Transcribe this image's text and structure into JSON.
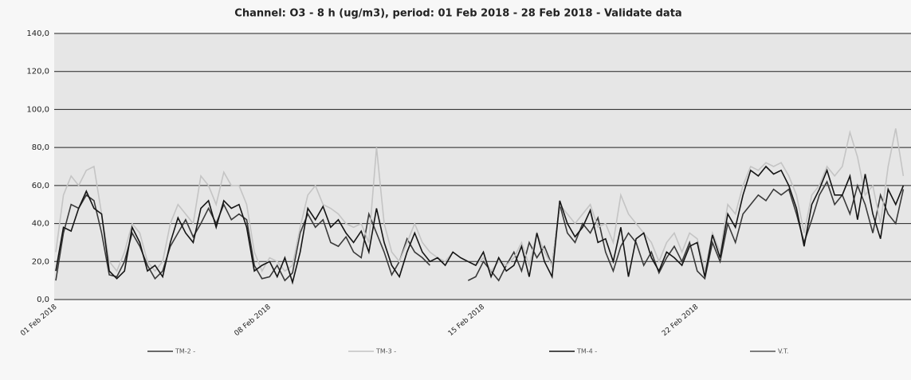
{
  "chart_data": {
    "type": "line",
    "title": "Channel: O3 - 8 h (ug/m3), period: 01 Feb 2018 - 28 Feb 2018 - Validate data",
    "categories": [
      "01 Feb 2018",
      null,
      null,
      null,
      null,
      null,
      null,
      null,
      null,
      null,
      null,
      null,
      null,
      null,
      null,
      null,
      null,
      null,
      null,
      null,
      null,
      null,
      null,
      null,
      null,
      null,
      null,
      null,
      "08 Feb 2018",
      null,
      null,
      null,
      null,
      null,
      null,
      null,
      null,
      null,
      null,
      null,
      null,
      null,
      null,
      null,
      null,
      null,
      null,
      null,
      null,
      null,
      null,
      null,
      null,
      null,
      null,
      null,
      "15 Feb 2018",
      null,
      null,
      null,
      null,
      null,
      null,
      null,
      null,
      null,
      null,
      null,
      null,
      null,
      null,
      null,
      null,
      null,
      null,
      null,
      null,
      null,
      null,
      null,
      null,
      null,
      null,
      null,
      "22 Feb 2018",
      null,
      null,
      null,
      null,
      null,
      null,
      null,
      null,
      null,
      null,
      null,
      null,
      null,
      null,
      null,
      null,
      null,
      null,
      null,
      null,
      null,
      null,
      null,
      null,
      null,
      null,
      null
    ],
    "series": [
      {
        "name": "TM-2 -",
        "color": "#3a3a3a",
        "values": [
          10,
          35,
          50,
          48,
          55,
          52,
          35,
          13,
          12,
          20,
          35,
          28,
          18,
          11,
          15,
          28,
          35,
          42,
          33,
          40,
          48,
          40,
          50,
          42,
          45,
          42,
          18,
          11,
          12,
          18,
          10,
          14,
          35,
          45,
          38,
          42,
          30,
          28,
          33,
          25,
          22,
          45,
          35,
          25,
          13,
          20,
          32,
          25,
          22,
          18,
          null,
          null,
          null,
          null,
          10,
          12,
          20,
          15,
          10,
          18,
          25,
          15,
          30,
          22,
          28,
          18,
          50,
          35,
          30,
          40,
          35,
          43,
          25,
          15,
          28,
          35,
          30,
          18,
          25,
          14,
          22,
          28,
          20,
          30,
          15,
          11,
          30,
          20,
          40,
          30,
          45,
          50,
          55,
          52,
          58,
          55,
          58,
          45,
          30,
          42,
          55,
          62,
          50,
          55,
          45,
          60,
          50,
          35,
          55,
          45,
          40,
          58
        ]
      },
      {
        "name": "TM-3 -",
        "color": "#c4c4c4",
        "values": [
          25,
          55,
          65,
          60,
          68,
          70,
          45,
          20,
          15,
          25,
          40,
          35,
          20,
          15,
          20,
          40,
          50,
          45,
          40,
          65,
          60,
          50,
          67,
          60,
          60,
          50,
          25,
          15,
          22,
          20,
          15,
          18,
          38,
          55,
          60,
          50,
          48,
          45,
          40,
          38,
          40,
          30,
          80,
          40,
          25,
          20,
          30,
          40,
          30,
          25,
          22,
          20,
          25,
          22,
          20,
          18,
          22,
          15,
          20,
          18,
          22,
          30,
          18,
          35,
          25,
          18,
          50,
          45,
          40,
          45,
          50,
          38,
          40,
          30,
          55,
          45,
          40,
          35,
          30,
          20,
          30,
          35,
          25,
          35,
          32,
          15,
          35,
          25,
          50,
          45,
          60,
          70,
          68,
          72,
          70,
          72,
          65,
          55,
          35,
          55,
          60,
          70,
          65,
          70,
          88,
          75,
          55,
          60,
          40,
          70,
          90,
          65
        ]
      },
      {
        "name": "TM-4 -",
        "color": "#151515",
        "values": [
          15,
          38,
          36,
          48,
          57,
          48,
          45,
          15,
          11,
          15,
          38,
          30,
          15,
          18,
          12,
          30,
          43,
          35,
          30,
          48,
          52,
          38,
          52,
          48,
          50,
          38,
          15,
          18,
          20,
          12,
          22,
          9,
          25,
          48,
          42,
          49,
          38,
          42,
          35,
          30,
          36,
          25,
          48,
          30,
          18,
          12,
          25,
          35,
          25,
          20,
          22,
          18,
          25,
          22,
          20,
          18,
          25,
          12,
          22,
          15,
          18,
          28,
          12,
          35,
          20,
          12,
          52,
          40,
          33,
          38,
          47,
          30,
          32,
          20,
          38,
          12,
          32,
          35,
          22,
          15,
          25,
          22,
          18,
          28,
          30,
          12,
          34,
          22,
          45,
          38,
          55,
          68,
          65,
          70,
          66,
          68,
          60,
          48,
          28,
          50,
          58,
          68,
          55,
          55,
          65,
          42,
          66,
          45,
          32,
          58,
          50,
          60
        ]
      },
      {
        "name": "V.T.",
        "color": "#555555",
        "values": [
          null,
          null,
          null,
          null,
          null,
          null,
          null,
          null,
          null,
          null,
          null,
          null,
          null,
          null,
          null,
          null,
          null,
          null,
          null,
          null,
          null,
          null,
          null,
          null,
          null,
          null,
          null,
          null,
          null,
          null,
          null,
          null,
          null,
          null,
          null,
          null,
          null,
          null,
          null,
          null,
          null,
          null,
          null,
          null,
          null,
          null,
          null,
          null,
          null,
          null,
          null,
          null,
          null,
          null,
          null,
          null,
          null,
          null,
          null,
          null,
          null,
          null,
          null,
          null,
          null,
          null,
          null,
          null,
          null,
          null,
          null,
          null,
          null,
          null,
          null,
          null,
          null,
          null,
          null,
          null,
          null,
          null,
          null,
          null,
          null,
          null,
          null,
          null,
          null,
          null,
          null,
          null,
          null,
          null,
          null,
          null,
          null,
          null,
          null,
          null,
          null,
          null,
          null,
          null,
          null,
          null,
          null,
          null,
          null,
          null,
          null,
          null
        ]
      }
    ],
    "ylim": [
      0,
      140
    ],
    "yticks": [
      {
        "value": 0,
        "label": "0,0"
      },
      {
        "value": 20,
        "label": "20,0"
      },
      {
        "value": 40,
        "label": "40,0"
      },
      {
        "value": 60,
        "label": "60,0"
      },
      {
        "value": 80,
        "label": "80,0"
      },
      {
        "value": 100,
        "label": "100,0"
      },
      {
        "value": 120,
        "label": "120,0"
      },
      {
        "value": 140,
        "label": "140,0"
      }
    ],
    "grid": true,
    "legend": "bottom"
  }
}
